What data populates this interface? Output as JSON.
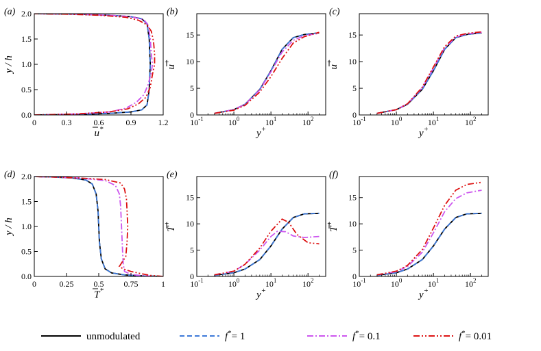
{
  "series_styles": [
    {
      "name": "unmodulated",
      "color": "#000000",
      "dash": ""
    },
    {
      "name": "f*= 1",
      "color": "#3c78d8",
      "dash": "7,4"
    },
    {
      "name": "f*= 0.1",
      "color": "#cc55ee",
      "dash": "9,3,2,3"
    },
    {
      "name": "f*= 0.01",
      "color": "#dd1111",
      "dash": "9,3,2,3,2,3"
    }
  ],
  "legend": {
    "items": [
      {
        "prefix": "",
        "text": "unmodulated"
      },
      {
        "prefix": "f",
        "text": "*= 1"
      },
      {
        "prefix": "f",
        "text": "*= 0.1"
      },
      {
        "prefix": "f",
        "text": "*= 0.01"
      }
    ]
  },
  "chart_data": [
    {
      "panel": "(a)",
      "type": "line",
      "xlabel": "u*",
      "ylabel": "y / h",
      "xlim": [
        0,
        1.2
      ],
      "ylim": [
        0,
        2
      ],
      "xticks": [
        0,
        0.3,
        0.6,
        0.9,
        1.2
      ],
      "xtick_labels": [
        "0",
        "0.3",
        "0.6",
        "0.9",
        "1.2"
      ],
      "yticks": [
        0,
        0.5,
        1,
        1.5,
        2
      ],
      "ytick_labels": [
        "0.0",
        "0.5",
        "1.0",
        "1.5",
        "2.0"
      ],
      "series": [
        {
          "x": [
            0.0,
            0.4,
            0.7,
            0.9,
            1.0,
            1.05,
            1.07,
            1.075,
            1.08,
            1.075,
            1.07,
            1.05,
            1.0,
            0.9,
            0.7,
            0.4,
            0.0
          ],
          "y": [
            0.0,
            0.01,
            0.03,
            0.06,
            0.1,
            0.2,
            0.5,
            0.8,
            1.0,
            1.2,
            1.5,
            1.8,
            1.9,
            1.94,
            1.97,
            1.99,
            2.0
          ]
        },
        {
          "x": [
            0.0,
            0.4,
            0.7,
            0.9,
            1.0,
            1.05,
            1.07,
            1.075,
            1.08,
            1.075,
            1.07,
            1.05,
            1.0,
            0.9,
            0.7,
            0.4,
            0.0
          ],
          "y": [
            0.0,
            0.01,
            0.03,
            0.06,
            0.1,
            0.2,
            0.5,
            0.8,
            1.0,
            1.2,
            1.5,
            1.8,
            1.9,
            1.94,
            1.97,
            1.99,
            2.0
          ]
        },
        {
          "x": [
            0.0,
            0.4,
            0.7,
            0.85,
            0.95,
            1.02,
            1.06,
            1.09,
            1.1,
            1.09,
            1.08,
            1.06,
            1.02,
            0.9,
            0.7,
            0.4,
            0.0
          ],
          "y": [
            0.0,
            0.02,
            0.06,
            0.13,
            0.25,
            0.4,
            0.6,
            0.85,
            1.0,
            1.2,
            1.5,
            1.78,
            1.88,
            1.94,
            1.97,
            1.99,
            2.0
          ]
        },
        {
          "x": [
            0.0,
            0.4,
            0.7,
            0.87,
            0.97,
            1.04,
            1.08,
            1.1,
            1.12,
            1.12,
            1.11,
            1.09,
            1.05,
            0.97,
            0.85,
            0.6,
            0.3,
            0.0
          ],
          "y": [
            0.0,
            0.02,
            0.06,
            0.12,
            0.22,
            0.35,
            0.55,
            0.8,
            1.0,
            1.2,
            1.45,
            1.65,
            1.78,
            1.87,
            1.93,
            1.97,
            1.99,
            2.0
          ]
        }
      ]
    },
    {
      "panel": "(b)",
      "type": "line",
      "xscale": "log",
      "xlabel": "y+",
      "ylabel": "u+",
      "xlim": [
        0.1,
        300
      ],
      "ylim": [
        0,
        19
      ],
      "xticks": [
        0.1,
        1,
        10,
        100
      ],
      "xtick_labels": [
        {
          "base": "10",
          "exp": "-1"
        },
        {
          "base": "10",
          "exp": "0"
        },
        {
          "base": "10",
          "exp": "1"
        },
        {
          "base": "10",
          "exp": "2"
        }
      ],
      "yticks": [
        0,
        5,
        10,
        15
      ],
      "ytick_labels": [
        "0",
        "5",
        "10",
        "15"
      ],
      "series": [
        {
          "x": [
            0.3,
            1,
            2,
            5,
            10,
            20,
            40,
            80,
            200
          ],
          "y": [
            0.3,
            1.0,
            2.0,
            4.8,
            8.3,
            12.3,
            14.5,
            15.1,
            15.4
          ]
        },
        {
          "x": [
            0.3,
            1,
            2,
            5,
            10,
            20,
            40,
            80,
            200
          ],
          "y": [
            0.3,
            1.0,
            2.0,
            4.8,
            8.3,
            12.3,
            14.5,
            15.1,
            15.4
          ]
        },
        {
          "x": [
            0.3,
            1,
            2,
            5,
            10,
            20,
            40,
            80,
            200
          ],
          "y": [
            0.3,
            1.0,
            2.0,
            4.7,
            8.1,
            11.8,
            14.0,
            14.9,
            15.3
          ]
        },
        {
          "x": [
            0.3,
            1,
            2,
            5,
            10,
            20,
            40,
            80,
            200
          ],
          "y": [
            0.3,
            0.9,
            1.8,
            4.3,
            7.2,
            10.6,
            13.5,
            14.7,
            15.5
          ]
        }
      ]
    },
    {
      "panel": "(c)",
      "type": "line",
      "xscale": "log",
      "xlabel": "y+",
      "ylabel": "u+",
      "xlim": [
        0.1,
        300
      ],
      "ylim": [
        0,
        19
      ],
      "xticks": [
        0.1,
        1,
        10,
        100
      ],
      "xtick_labels": [
        {
          "base": "10",
          "exp": "-1"
        },
        {
          "base": "10",
          "exp": "0"
        },
        {
          "base": "10",
          "exp": "1"
        },
        {
          "base": "10",
          "exp": "2"
        }
      ],
      "yticks": [
        0,
        5,
        10,
        15
      ],
      "ytick_labels": [
        "0",
        "5",
        "10",
        "15"
      ],
      "series": [
        {
          "x": [
            0.3,
            1,
            2,
            5,
            10,
            20,
            40,
            80,
            200
          ],
          "y": [
            0.3,
            1.0,
            2.0,
            4.8,
            8.3,
            12.3,
            14.5,
            15.1,
            15.4
          ]
        },
        {
          "x": [
            0.3,
            1,
            2,
            5,
            10,
            20,
            40,
            80,
            200
          ],
          "y": [
            0.3,
            1.0,
            2.0,
            4.8,
            8.3,
            12.3,
            14.5,
            15.1,
            15.4
          ]
        },
        {
          "x": [
            0.3,
            1,
            2,
            5,
            10,
            20,
            40,
            80,
            200
          ],
          "y": [
            0.3,
            1.0,
            2.1,
            5.1,
            8.8,
            12.6,
            14.6,
            15.2,
            15.5
          ]
        },
        {
          "x": [
            0.3,
            1,
            2,
            5,
            10,
            20,
            40,
            80,
            200
          ],
          "y": [
            0.3,
            1.0,
            2.1,
            5.2,
            9.0,
            12.8,
            14.8,
            15.3,
            15.6
          ]
        }
      ]
    },
    {
      "panel": "(d)",
      "type": "line",
      "xlabel": "T*",
      "ylabel": "y / h",
      "xlim": [
        0,
        1
      ],
      "ylim": [
        0,
        2
      ],
      "xticks": [
        0,
        0.25,
        0.5,
        0.75,
        1
      ],
      "xtick_labels": [
        "0",
        "0.25",
        "0.5",
        "0.75",
        "1"
      ],
      "yticks": [
        0,
        0.5,
        1,
        1.5,
        2
      ],
      "ytick_labels": [
        "0.0",
        "0.5",
        "1.0",
        "1.5",
        "2.0"
      ],
      "series": [
        {
          "x": [
            1.0,
            0.85,
            0.7,
            0.6,
            0.55,
            0.52,
            0.505,
            0.5,
            0.495,
            0.48,
            0.45,
            0.4,
            0.3,
            0.15,
            0.0
          ],
          "y": [
            0.0,
            0.01,
            0.03,
            0.07,
            0.15,
            0.35,
            0.7,
            1.0,
            1.3,
            1.65,
            1.85,
            1.93,
            1.97,
            1.99,
            2.0
          ]
        },
        {
          "x": [
            1.0,
            0.85,
            0.7,
            0.6,
            0.55,
            0.52,
            0.505,
            0.5,
            0.495,
            0.48,
            0.45,
            0.4,
            0.3,
            0.15,
            0.0
          ],
          "y": [
            0.0,
            0.01,
            0.03,
            0.07,
            0.15,
            0.35,
            0.7,
            1.0,
            1.3,
            1.65,
            1.85,
            1.93,
            1.97,
            1.99,
            2.0
          ]
        },
        {
          "x": [
            1.0,
            0.85,
            0.75,
            0.7,
            0.69,
            0.685,
            0.68,
            0.675,
            0.67,
            0.66,
            0.63,
            0.55,
            0.35,
            0.15,
            0.0
          ],
          "y": [
            0.0,
            0.01,
            0.04,
            0.1,
            0.25,
            0.5,
            0.8,
            1.1,
            1.4,
            1.65,
            1.82,
            1.92,
            1.97,
            1.99,
            2.0
          ]
        },
        {
          "x": [
            1.0,
            0.9,
            0.82,
            0.75,
            0.69,
            0.66,
            0.71,
            0.72,
            0.725,
            0.72,
            0.715,
            0.7,
            0.67,
            0.55,
            0.35,
            0.15,
            0.0
          ],
          "y": [
            0.0,
            0.02,
            0.06,
            0.1,
            0.15,
            0.2,
            0.4,
            0.7,
            1.0,
            1.3,
            1.55,
            1.75,
            1.87,
            1.94,
            1.97,
            1.99,
            2.0
          ]
        }
      ]
    },
    {
      "panel": "(e)",
      "type": "line",
      "xscale": "log",
      "xlabel": "y+",
      "ylabel": "T+",
      "xlim": [
        0.1,
        300
      ],
      "ylim": [
        0,
        19
      ],
      "xticks": [
        0.1,
        1,
        10,
        100
      ],
      "xtick_labels": [
        {
          "base": "10",
          "exp": "-1"
        },
        {
          "base": "10",
          "exp": "0"
        },
        {
          "base": "10",
          "exp": "1"
        },
        {
          "base": "10",
          "exp": "2"
        }
      ],
      "yticks": [
        0,
        5,
        10,
        15
      ],
      "ytick_labels": [
        "0",
        "5",
        "10",
        "15"
      ],
      "series": [
        {
          "x": [
            0.3,
            1,
            2,
            5,
            10,
            20,
            40,
            80,
            200
          ],
          "y": [
            0.2,
            0.7,
            1.4,
            3.2,
            5.8,
            9.0,
            11.2,
            11.9,
            12.0
          ]
        },
        {
          "x": [
            0.3,
            1,
            2,
            5,
            10,
            20,
            40,
            80,
            200
          ],
          "y": [
            0.2,
            0.7,
            1.4,
            3.2,
            5.8,
            9.0,
            11.2,
            11.9,
            12.0
          ]
        },
        {
          "x": [
            0.3,
            1,
            2,
            5,
            10,
            15,
            25,
            40,
            80,
            200
          ],
          "y": [
            0.3,
            1.0,
            2.3,
            5.0,
            7.6,
            8.6,
            8.5,
            7.7,
            7.4,
            7.6
          ]
        },
        {
          "x": [
            0.3,
            1,
            2,
            5,
            10,
            20,
            30,
            50,
            100,
            200
          ],
          "y": [
            0.3,
            1.0,
            2.3,
            5.4,
            8.6,
            10.9,
            10.3,
            8.0,
            6.4,
            6.2
          ]
        }
      ]
    },
    {
      "panel": "(f)",
      "type": "line",
      "xscale": "log",
      "xlabel": "y+",
      "ylabel": "T+",
      "xlim": [
        0.1,
        300
      ],
      "ylim": [
        0,
        19
      ],
      "xticks": [
        0.1,
        1,
        10,
        100
      ],
      "xtick_labels": [
        {
          "base": "10",
          "exp": "-1"
        },
        {
          "base": "10",
          "exp": "0"
        },
        {
          "base": "10",
          "exp": "1"
        },
        {
          "base": "10",
          "exp": "2"
        }
      ],
      "yticks": [
        0,
        5,
        10,
        15
      ],
      "ytick_labels": [
        "0",
        "5",
        "10",
        "15"
      ],
      "series": [
        {
          "x": [
            0.3,
            1,
            2,
            5,
            10,
            20,
            40,
            80,
            200
          ],
          "y": [
            0.2,
            0.7,
            1.4,
            3.2,
            5.8,
            9.0,
            11.2,
            11.9,
            12.0
          ]
        },
        {
          "x": [
            0.3,
            1,
            2,
            5,
            10,
            20,
            40,
            80,
            200
          ],
          "y": [
            0.2,
            0.7,
            1.4,
            3.2,
            5.8,
            9.0,
            11.2,
            11.9,
            12.0
          ]
        },
        {
          "x": [
            0.3,
            1,
            2,
            5,
            10,
            20,
            40,
            80,
            200
          ],
          "y": [
            0.3,
            0.9,
            1.9,
            4.6,
            8.3,
            12.3,
            14.8,
            15.9,
            16.4
          ]
        },
        {
          "x": [
            0.3,
            1,
            2,
            5,
            10,
            20,
            40,
            80,
            200
          ],
          "y": [
            0.3,
            1.0,
            2.1,
            5.1,
            9.2,
            13.5,
            16.4,
            17.5,
            17.9
          ]
        }
      ]
    }
  ]
}
